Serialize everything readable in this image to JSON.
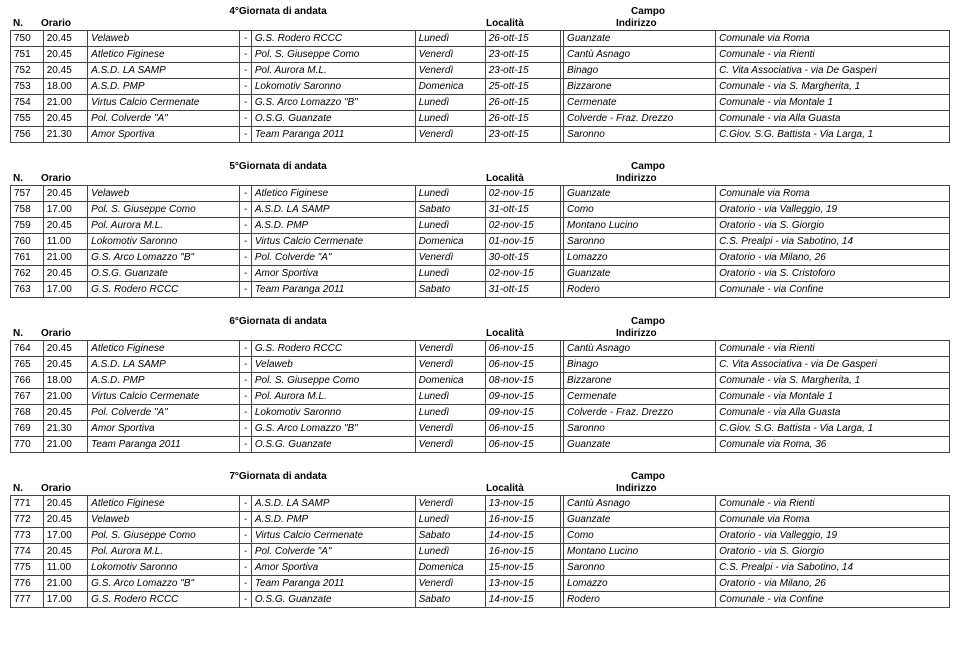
{
  "sections": [
    {
      "title": "4°Giornata di andata",
      "campo": "Campo",
      "headers": {
        "n": "N.",
        "orario": "Orario",
        "localita": "Località",
        "indirizzo": "Indirizzo"
      },
      "rows": [
        {
          "n": "750",
          "h": "20.45",
          "a": "Velaweb",
          "b": "G.S. Rodero RCCC",
          "d": "Lunedì",
          "dt": "26-ott-15",
          "loc": "Guanzate",
          "ind": "Comunale via Roma"
        },
        {
          "n": "751",
          "h": "20.45",
          "a": "Atletico Figinese",
          "b": "Pol. S. Giuseppe Como",
          "d": "Venerdì",
          "dt": "23-ott-15",
          "loc": "Cantù Asnago",
          "ind": "Comunale - via Rienti"
        },
        {
          "n": "752",
          "h": "20.45",
          "a": "A.S.D. LA SAMP",
          "b": "Pol. Aurora M.L.",
          "d": "Venerdì",
          "dt": "23-ott-15",
          "loc": "Binago",
          "ind": "C. Vita Associativa - via De Gasperi"
        },
        {
          "n": "753",
          "h": "18.00",
          "a": "A.S.D. PMP",
          "b": "Lokomotiv Saronno",
          "d": "Domenica",
          "dt": "25-ott-15",
          "loc": "Bizzarone",
          "ind": "Comunale - via S. Margherita, 1"
        },
        {
          "n": "754",
          "h": "21.00",
          "a": "Virtus Calcio Cermenate",
          "b": "G.S. Arco Lomazzo \"B\"",
          "d": "Lunedì",
          "dt": "26-ott-15",
          "loc": "Cermenate",
          "ind": "Comunale - via Montale 1"
        },
        {
          "n": "755",
          "h": "20.45",
          "a": "Pol. Colverde \"A\"",
          "b": "O.S.G. Guanzate",
          "d": "Lunedì",
          "dt": "26-ott-15",
          "loc": "Colverde - Fraz. Drezzo",
          "ind": "Comunale - via Alla Guasta"
        },
        {
          "n": "756",
          "h": "21.30",
          "a": "Amor Sportiva",
          "b": "Team Paranga 2011",
          "d": "Venerdì",
          "dt": "23-ott-15",
          "loc": "Saronno",
          "ind": "C.Giov. S.G. Battista - Via Larga, 1"
        }
      ]
    },
    {
      "title": "5°Giornata di andata",
      "campo": "Campo",
      "headers": {
        "n": "N.",
        "orario": "Orario",
        "localita": "Località",
        "indirizzo": "Indirizzo"
      },
      "rows": [
        {
          "n": "757",
          "h": "20.45",
          "a": "Velaweb",
          "b": "Atletico Figinese",
          "d": "Lunedì",
          "dt": "02-nov-15",
          "loc": "Guanzate",
          "ind": "Comunale via Roma"
        },
        {
          "n": "758",
          "h": "17.00",
          "a": "Pol. S. Giuseppe Como",
          "b": "A.S.D. LA SAMP",
          "d": "Sabato",
          "dt": "31-ott-15",
          "loc": "Como",
          "ind": "Oratorio - via Valleggio, 19"
        },
        {
          "n": "759",
          "h": "20.45",
          "a": "Pol. Aurora M.L.",
          "b": "A.S.D. PMP",
          "d": "Lunedì",
          "dt": "02-nov-15",
          "loc": "Montano Lucino",
          "ind": "Oratorio - via S. Giorgio"
        },
        {
          "n": "760",
          "h": "11.00",
          "a": "Lokomotiv Saronno",
          "b": "Virtus Calcio Cermenate",
          "d": "Domenica",
          "dt": "01-nov-15",
          "loc": "Saronno",
          "ind": "C.S. Prealpi - via Sabotino, 14"
        },
        {
          "n": "761",
          "h": "21.00",
          "a": "G.S. Arco Lomazzo \"B\"",
          "b": "Pol. Colverde \"A\"",
          "d": "Venerdì",
          "dt": "30-ott-15",
          "loc": "Lomazzo",
          "ind": "Oratorio - via Milano, 26"
        },
        {
          "n": "762",
          "h": "20.45",
          "a": "O.S.G. Guanzate",
          "b": "Amor Sportiva",
          "d": "Lunedì",
          "dt": "02-nov-15",
          "loc": "Guanzate",
          "ind": "Oratorio - via S. Cristoforo"
        },
        {
          "n": "763",
          "h": "17.00",
          "a": "G.S. Rodero RCCC",
          "b": "Team Paranga 2011",
          "d": "Sabato",
          "dt": "31-ott-15",
          "loc": "Rodero",
          "ind": "Comunale - via Confine"
        }
      ]
    },
    {
      "title": "6°Giornata di andata",
      "campo": "Campo",
      "headers": {
        "n": "N.",
        "orario": "Orario",
        "localita": "Località",
        "indirizzo": "Indirizzo"
      },
      "rows": [
        {
          "n": "764",
          "h": "20.45",
          "a": "Atletico Figinese",
          "b": "G.S. Rodero RCCC",
          "d": "Venerdì",
          "dt": "06-nov-15",
          "loc": "Cantù Asnago",
          "ind": "Comunale - via Rienti"
        },
        {
          "n": "765",
          "h": "20.45",
          "a": "A.S.D. LA SAMP",
          "b": "Velaweb",
          "d": "Venerdì",
          "dt": "06-nov-15",
          "loc": "Binago",
          "ind": "C. Vita Associativa - via De Gasperi"
        },
        {
          "n": "766",
          "h": "18.00",
          "a": "A.S.D. PMP",
          "b": "Pol. S. Giuseppe Como",
          "d": "Domenica",
          "dt": "08-nov-15",
          "loc": "Bizzarone",
          "ind": "Comunale - via S. Margherita, 1"
        },
        {
          "n": "767",
          "h": "21.00",
          "a": "Virtus Calcio Cermenate",
          "b": "Pol. Aurora M.L.",
          "d": "Lunedì",
          "dt": "09-nov-15",
          "loc": "Cermenate",
          "ind": "Comunale - via Montale 1"
        },
        {
          "n": "768",
          "h": "20.45",
          "a": "Pol. Colverde \"A\"",
          "b": "Lokomotiv Saronno",
          "d": "Lunedì",
          "dt": "09-nov-15",
          "loc": "Colverde - Fraz. Drezzo",
          "ind": "Comunale - via Alla Guasta"
        },
        {
          "n": "769",
          "h": "21.30",
          "a": "Amor Sportiva",
          "b": "G.S. Arco Lomazzo \"B\"",
          "d": "Venerdì",
          "dt": "06-nov-15",
          "loc": "Saronno",
          "ind": "C.Giov. S.G. Battista - Via Larga, 1"
        },
        {
          "n": "770",
          "h": "21.00",
          "a": "Team Paranga 2011",
          "b": "O.S.G. Guanzate",
          "d": "Venerdì",
          "dt": "06-nov-15",
          "loc": "Guanzate",
          "ind": "Comunale via Roma, 36"
        }
      ]
    },
    {
      "title": "7°Giornata di andata",
      "campo": "Campo",
      "headers": {
        "n": "N.",
        "orario": "Orario",
        "localita": "Località",
        "indirizzo": "Indirizzo"
      },
      "rows": [
        {
          "n": "771",
          "h": "20.45",
          "a": "Atletico Figinese",
          "b": "A.S.D. LA SAMP",
          "d": "Venerdì",
          "dt": "13-nov-15",
          "loc": "Cantù Asnago",
          "ind": "Comunale - via Rienti"
        },
        {
          "n": "772",
          "h": "20.45",
          "a": "Velaweb",
          "b": "A.S.D. PMP",
          "d": "Lunedì",
          "dt": "16-nov-15",
          "loc": "Guanzate",
          "ind": "Comunale via Roma"
        },
        {
          "n": "773",
          "h": "17.00",
          "a": "Pol. S. Giuseppe Como",
          "b": "Virtus Calcio Cermenate",
          "d": "Sabato",
          "dt": "14-nov-15",
          "loc": "Como",
          "ind": "Oratorio - via Valleggio, 19"
        },
        {
          "n": "774",
          "h": "20.45",
          "a": "Pol. Aurora M.L.",
          "b": "Pol. Colverde \"A\"",
          "d": "Lunedì",
          "dt": "16-nov-15",
          "loc": "Montano Lucino",
          "ind": "Oratorio - via S. Giorgio"
        },
        {
          "n": "775",
          "h": "11.00",
          "a": "Lokomotiv Saronno",
          "b": "Amor Sportiva",
          "d": "Domenica",
          "dt": "15-nov-15",
          "loc": "Saronno",
          "ind": "C.S. Prealpi - via Sabotino, 14"
        },
        {
          "n": "776",
          "h": "21.00",
          "a": "G.S. Arco Lomazzo \"B\"",
          "b": "Team Paranga 2011",
          "d": "Venerdì",
          "dt": "13-nov-15",
          "loc": "Lomazzo",
          "ind": "Oratorio - via Milano, 26"
        },
        {
          "n": "777",
          "h": "17.00",
          "a": "G.S. Rodero RCCC",
          "b": "O.S.G. Guanzate",
          "d": "Sabato",
          "dt": "14-nov-15",
          "loc": "Rodero",
          "ind": "Comunale - via Confine"
        }
      ]
    }
  ]
}
